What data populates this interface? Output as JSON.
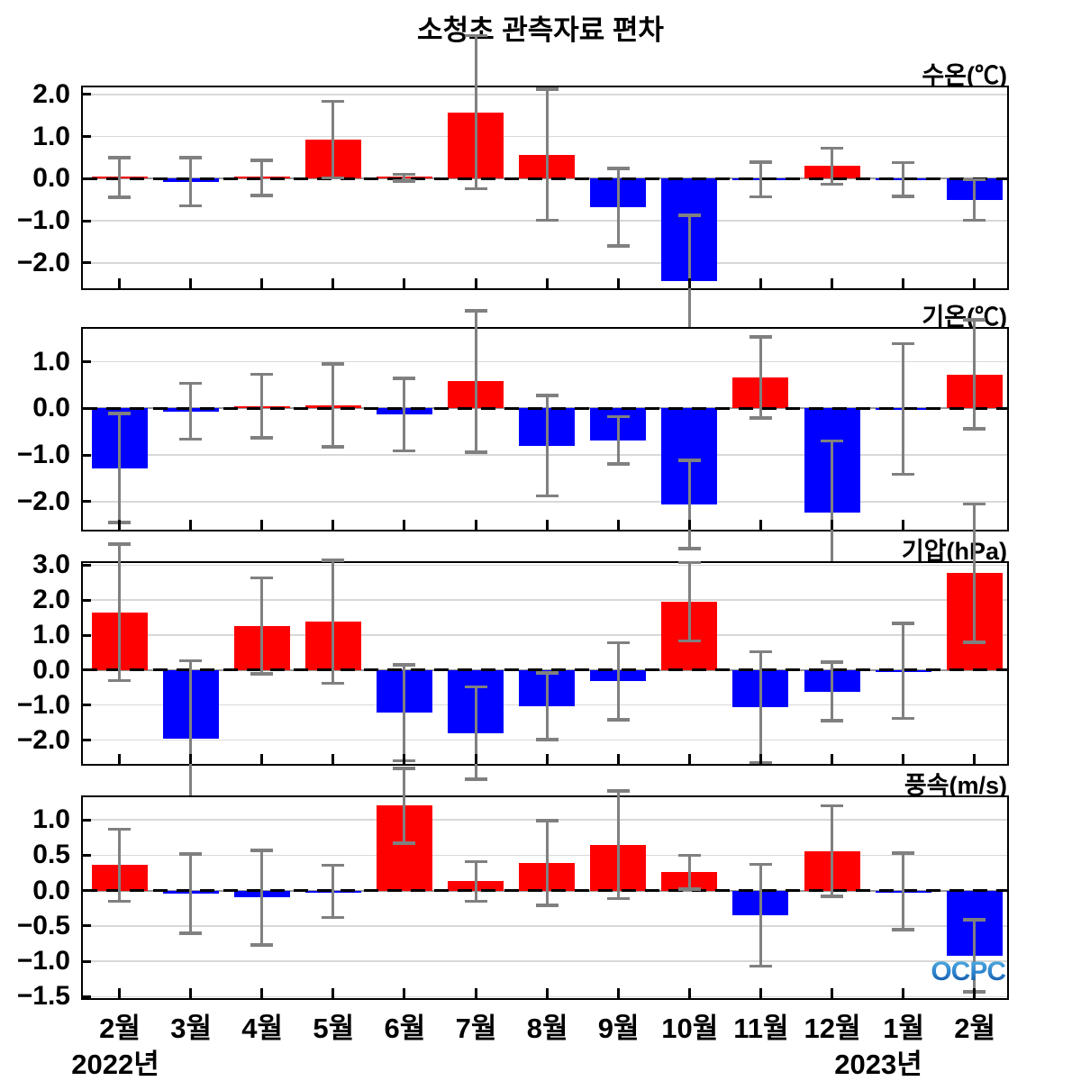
{
  "title": "소청초 관측자료 편차",
  "logo": "OCPC",
  "colors": {
    "positive_bar": "#ff0000",
    "negative_bar": "#0000ff",
    "error_bar": "#808080",
    "gridline": "#d8d8d8",
    "zero_line_solid": "#999999",
    "zero_line_dash": "#000000",
    "frame": "#000000",
    "logo_blue": "#1e78c8"
  },
  "x_axis": {
    "categories": [
      "2월",
      "3월",
      "4월",
      "5월",
      "6월",
      "7월",
      "8월",
      "9월",
      "10월",
      "11월",
      "12월",
      "1월",
      "2월"
    ],
    "year_left": {
      "label": "2022년"
    },
    "year_right": {
      "label": "2023년"
    }
  },
  "chart_data": [
    {
      "type": "bar",
      "title": "수온(℃)",
      "categories": [
        "2월",
        "3월",
        "4월",
        "5월",
        "6월",
        "7월",
        "8월",
        "9월",
        "10월",
        "11월",
        "12월",
        "1월",
        "2월"
      ],
      "values": [
        0.03,
        -0.07,
        0.02,
        0.93,
        0.03,
        1.58,
        0.57,
        -0.67,
        -2.42,
        -0.02,
        0.3,
        -0.02,
        -0.5
      ],
      "errors": [
        0.47,
        0.57,
        0.42,
        0.91,
        0.08,
        1.82,
        1.56,
        0.92,
        1.55,
        0.41,
        0.43,
        0.4,
        0.48
      ],
      "ylim": [
        -2.6,
        2.17
      ],
      "yticks": [
        2.0,
        1.0,
        0.0,
        -1.0,
        -2.0
      ],
      "ytick_labels": [
        "2.0",
        "1.0",
        "0.0",
        "−1.0",
        "−2.0"
      ]
    },
    {
      "type": "bar",
      "title": "기온(℃)",
      "categories": [
        "2월",
        "3월",
        "4월",
        "5월",
        "6월",
        "7월",
        "8월",
        "9월",
        "10월",
        "11월",
        "12월",
        "1월",
        "2월"
      ],
      "values": [
        -1.28,
        -0.06,
        0.05,
        0.07,
        -0.13,
        0.58,
        -0.8,
        -0.68,
        -2.06,
        0.67,
        -2.24,
        -0.01,
        0.73
      ],
      "errors": [
        1.17,
        0.6,
        0.68,
        0.89,
        0.78,
        1.52,
        1.08,
        0.51,
        0.95,
        0.87,
        1.54,
        1.4,
        1.17
      ],
      "ylim": [
        -2.6,
        1.71
      ],
      "yticks": [
        1.0,
        0.0,
        -1.0,
        -2.0
      ],
      "ytick_labels": [
        "1.0",
        "0.0",
        "−1.0",
        "−2.0"
      ]
    },
    {
      "type": "bar",
      "title": "기압(hPa)",
      "categories": [
        "2월",
        "3월",
        "4월",
        "5월",
        "6월",
        "7월",
        "8월",
        "9월",
        "10월",
        "11월",
        "12월",
        "1월",
        "2월"
      ],
      "values": [
        1.65,
        -1.96,
        1.26,
        1.38,
        -1.22,
        -1.8,
        -1.03,
        -0.32,
        1.95,
        -1.06,
        -0.61,
        -0.02,
        2.77
      ],
      "errors": [
        1.95,
        2.23,
        1.37,
        1.76,
        1.37,
        1.32,
        0.95,
        1.1,
        1.12,
        1.58,
        0.84,
        1.36,
        1.97
      ],
      "ylim": [
        -2.68,
        3.06
      ],
      "yticks": [
        3.0,
        2.0,
        1.0,
        0.0,
        -1.0,
        -2.0
      ],
      "ytick_labels": [
        "3.0",
        "2.0",
        "1.0",
        "0.0",
        "−1.0",
        "−2.0"
      ]
    },
    {
      "type": "bar",
      "title": "풍속(m/s)",
      "categories": [
        "2월",
        "3월",
        "4월",
        "5월",
        "6월",
        "7월",
        "8월",
        "9월",
        "10월",
        "11월",
        "12월",
        "1월",
        "2월"
      ],
      "values": [
        0.36,
        -0.04,
        -0.1,
        -0.01,
        1.2,
        0.13,
        0.39,
        0.65,
        0.26,
        -0.35,
        0.56,
        -0.01,
        -0.92
      ],
      "errors": [
        0.51,
        0.56,
        0.67,
        0.37,
        0.53,
        0.28,
        0.6,
        0.76,
        0.24,
        0.72,
        0.64,
        0.54,
        0.51
      ],
      "ylim": [
        -1.52,
        1.32
      ],
      "yticks": [
        1.0,
        0.5,
        0.0,
        -0.5,
        -1.0,
        -1.5
      ],
      "ytick_labels": [
        "1.0",
        "0.5",
        "0.0",
        "−0.5",
        "−1.0",
        "−1.5"
      ]
    }
  ]
}
